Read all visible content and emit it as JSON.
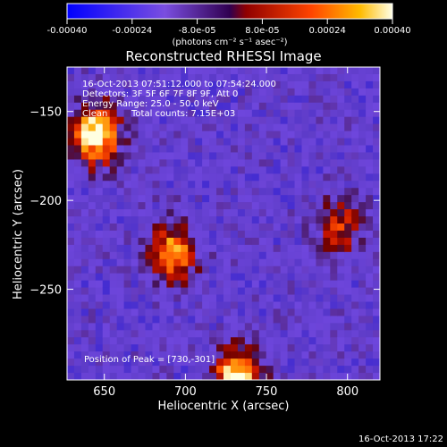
{
  "colorbar": {
    "ticks": [
      "-0.00040",
      "-0.00024",
      "-8.0e-05",
      "8.0e-05",
      "0.00024",
      "0.00040"
    ],
    "unit_label": "(photons cm⁻² s⁻¹ asec⁻²)",
    "range": [
      -0.0004,
      0.0004
    ]
  },
  "overlay": {
    "time_range": "16-Oct-2013 07:51:12.000 to 07:54:24.000",
    "detectors": "Detectors: 3F 5F 6F 7F 8F 9F, Att 0",
    "energy": "Energy Range: 25.0 - 50.0 keV",
    "clean": "Clean",
    "counts": "Total counts: 7.15E+03",
    "peak": "Position of Peak = [730,-301]"
  },
  "footer": {
    "timestamp": "16-Oct-2013 17:22"
  },
  "colors": {
    "background": "#000000",
    "colormap": [
      "#0000ff",
      "#6c2cc0",
      "#7a4ee0",
      "#c00000",
      "#ff3300",
      "#ff9900",
      "#ffffe0"
    ]
  },
  "chart_data": {
    "type": "heatmap",
    "title": "Reconstructed RHESSI Image",
    "xlabel": "Heliocentric X (arcsec)",
    "ylabel": "Heliocentric Y (arcsec)",
    "xlim": [
      627,
      820
    ],
    "ylim": [
      -301,
      -125
    ],
    "xticks": [
      650,
      700,
      750,
      800
    ],
    "yticks": [
      -150,
      -200,
      -250
    ],
    "peak": {
      "x": 730,
      "y": -301
    },
    "sources": [
      {
        "x": 645,
        "y": -163,
        "intensity": 0.0004
      },
      {
        "x": 692,
        "y": -230,
        "intensity": 0.0003
      },
      {
        "x": 732,
        "y": -300,
        "intensity": 0.0004
      },
      {
        "x": 795,
        "y": -215,
        "intensity": 0.0002
      }
    ]
  }
}
